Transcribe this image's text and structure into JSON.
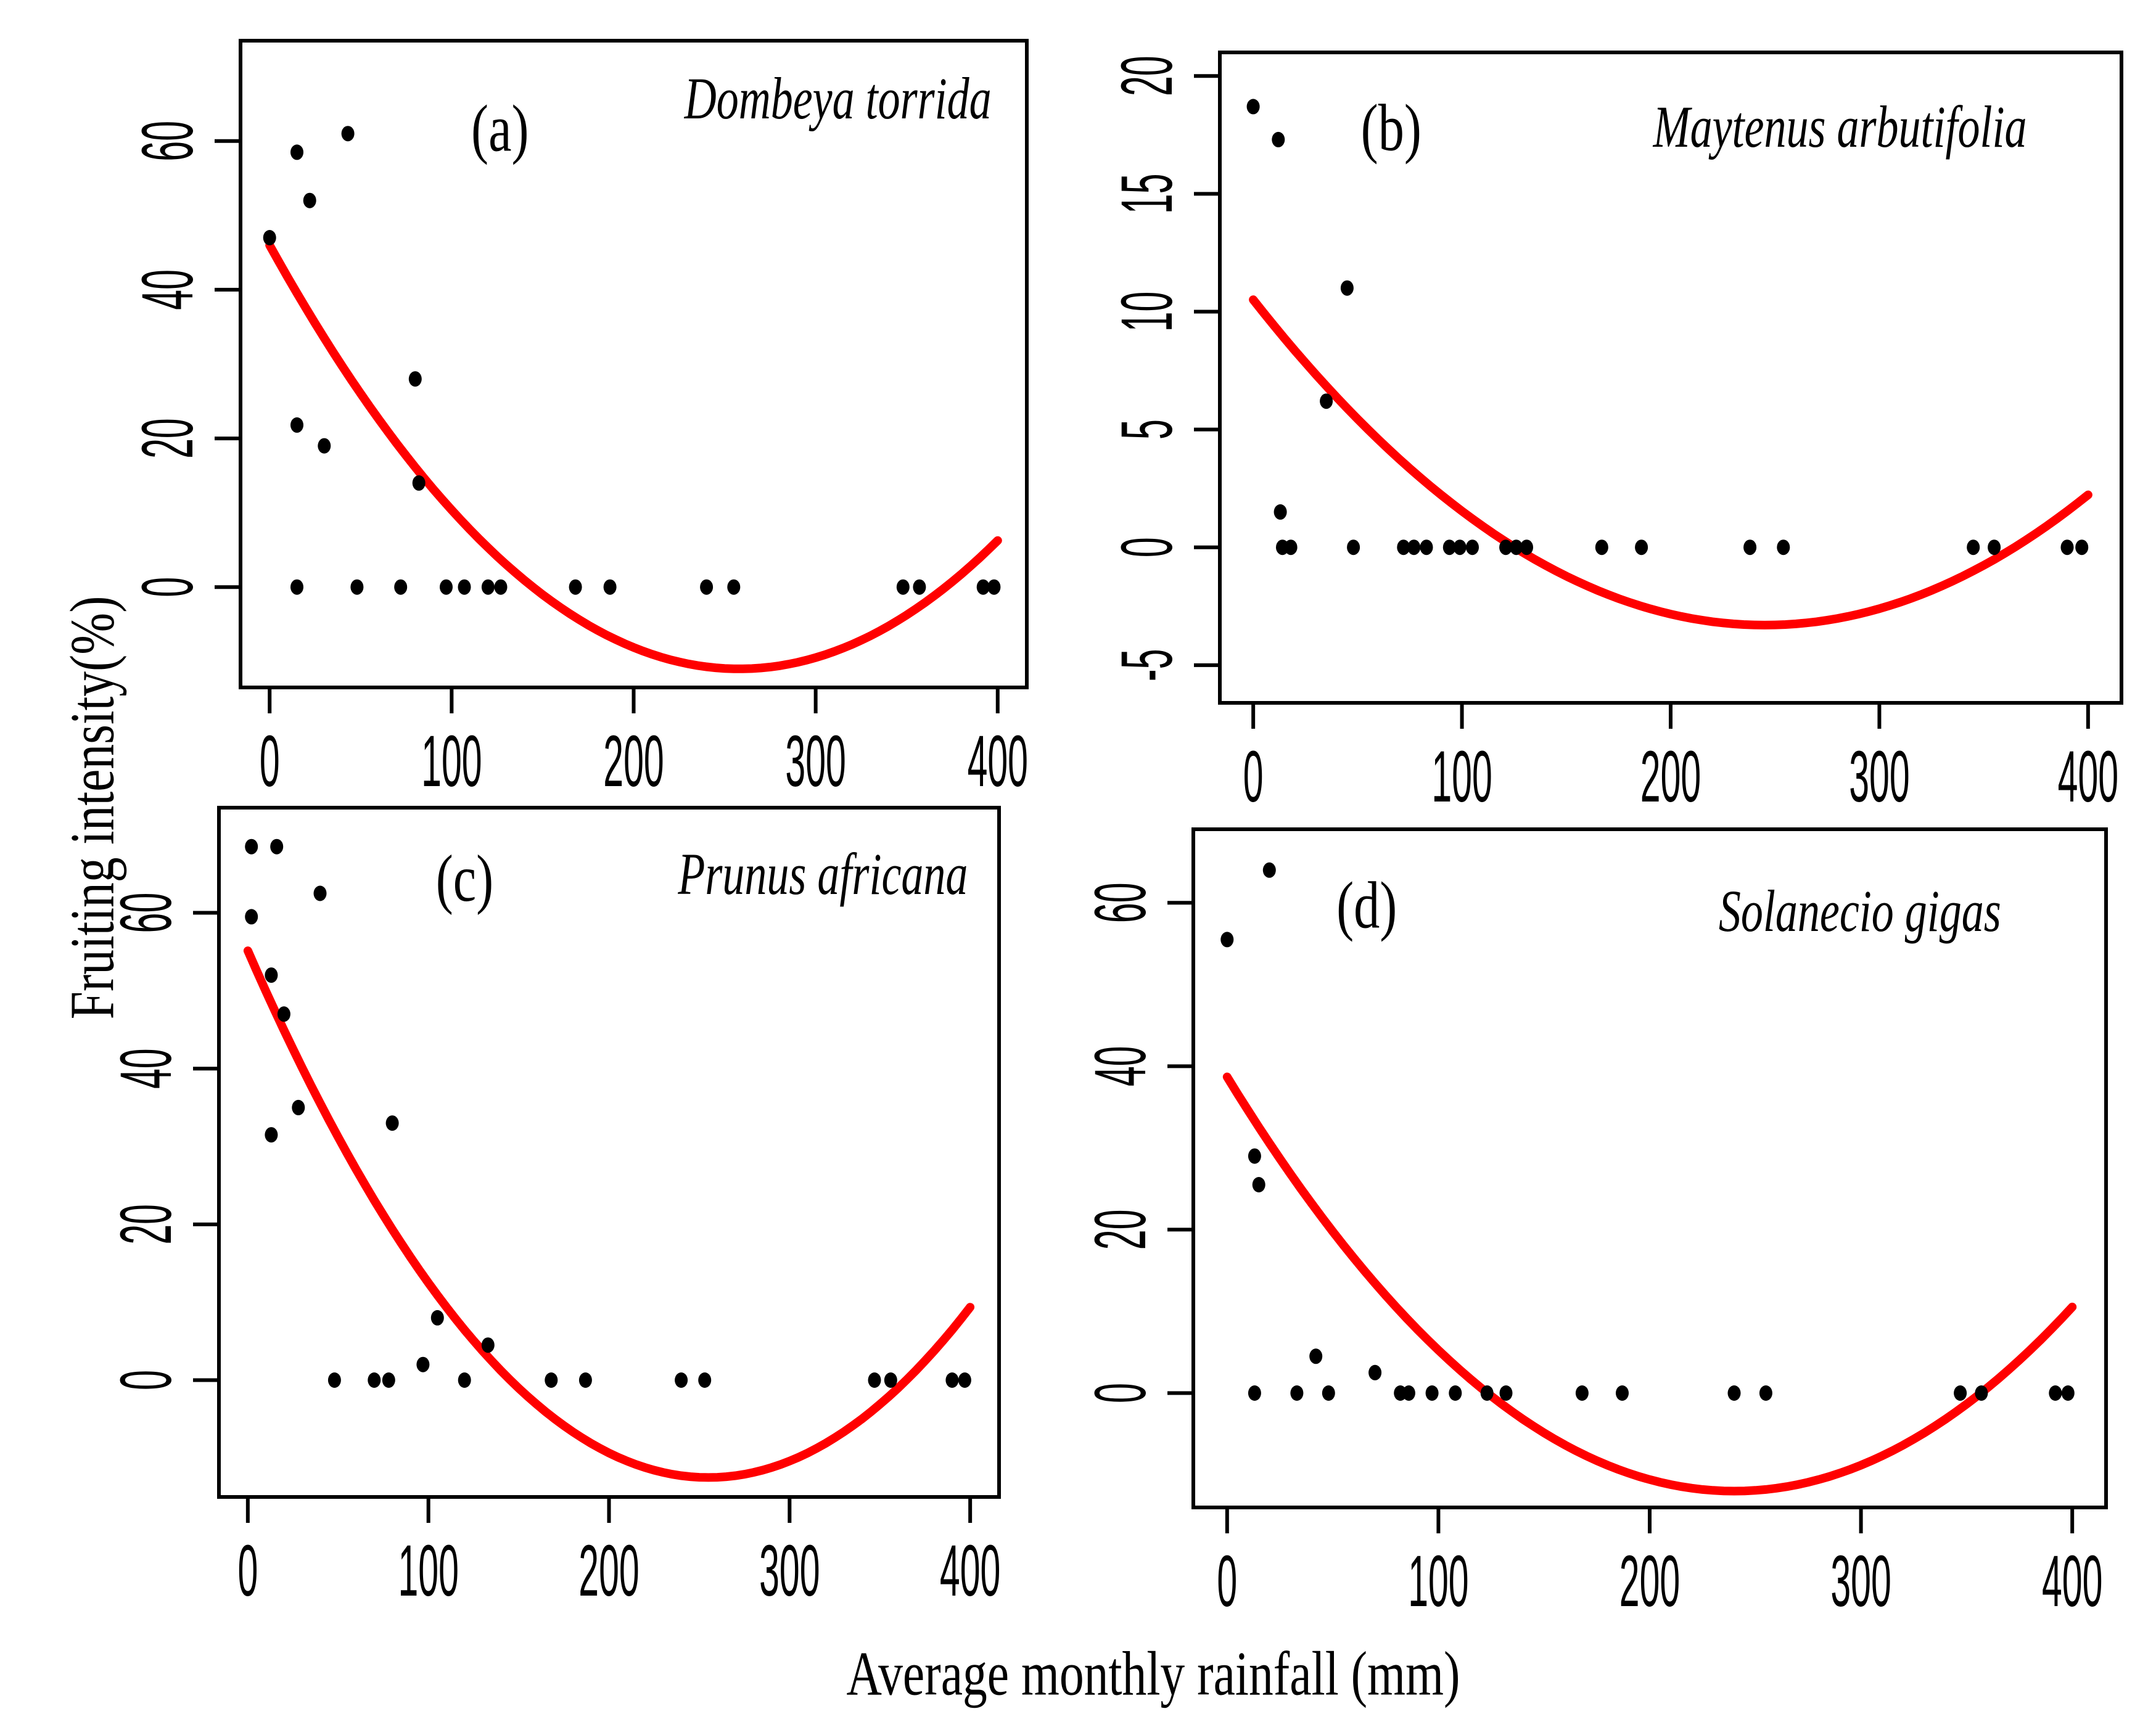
{
  "figure": {
    "y_axis_label": "Fruiting intensity(%)",
    "x_axis_label": "Average monthly rainfall (mm)",
    "background_color": "#ffffff",
    "curve_color": "#ff0000",
    "point_color": "#000000",
    "axis_color": "#000000"
  },
  "chart_data": [
    {
      "type": "scatter",
      "panel_id": "a",
      "panel_letter": "(a)",
      "title": "Dombeya torrida",
      "xlim": [
        -16,
        416
      ],
      "ylim": [
        -13.5,
        73.5
      ],
      "xticks": [
        0,
        100,
        200,
        300,
        400
      ],
      "yticks": [
        0,
        20,
        40,
        60
      ],
      "grid": false,
      "legend": null,
      "points": [
        [
          0,
          47
        ],
        [
          15,
          58.5
        ],
        [
          22,
          52
        ],
        [
          43,
          61
        ],
        [
          15,
          21.8
        ],
        [
          30,
          19
        ],
        [
          80,
          28
        ],
        [
          82,
          14
        ],
        [
          15,
          0
        ],
        [
          48,
          0
        ],
        [
          72,
          0
        ],
        [
          97,
          0
        ],
        [
          107,
          0
        ],
        [
          120,
          0
        ],
        [
          127,
          0
        ],
        [
          168,
          0
        ],
        [
          187,
          0
        ],
        [
          240,
          0
        ],
        [
          255,
          0
        ],
        [
          348,
          0
        ],
        [
          357,
          0
        ],
        [
          392,
          0
        ],
        [
          398,
          0
        ]
      ],
      "fit_curve": {
        "type": "quadratic",
        "a": 0.000856,
        "vertex_x": 258,
        "vertex_y": -11,
        "x_start": 0,
        "x_end": 400
      },
      "letter_pos": [
        0.33,
        0.17
      ],
      "title_pos": [
        0.955,
        0.12
      ]
    },
    {
      "type": "scatter",
      "panel_id": "b",
      "panel_letter": "(b)",
      "title": "Maytenus arbutifolia",
      "xlim": [
        -16,
        416
      ],
      "ylim": [
        -6.6,
        21
      ],
      "xticks": [
        0,
        100,
        200,
        300,
        400
      ],
      "yticks": [
        -5,
        0,
        5,
        10,
        15,
        20
      ],
      "grid": false,
      "legend": null,
      "points": [
        [
          0,
          18.7
        ],
        [
          12,
          17.3
        ],
        [
          45,
          11
        ],
        [
          35,
          6.2
        ],
        [
          13,
          1.5
        ],
        [
          14,
          0
        ],
        [
          18,
          0
        ],
        [
          48,
          0
        ],
        [
          72,
          0
        ],
        [
          77,
          0
        ],
        [
          83,
          0
        ],
        [
          94,
          0
        ],
        [
          99,
          0
        ],
        [
          105,
          0
        ],
        [
          121,
          0
        ],
        [
          126,
          0
        ],
        [
          131,
          0
        ],
        [
          167,
          0
        ],
        [
          186,
          0
        ],
        [
          238,
          0
        ],
        [
          254,
          0
        ],
        [
          345,
          0
        ],
        [
          355,
          0
        ],
        [
          390,
          0
        ],
        [
          397,
          0
        ]
      ],
      "fit_curve": {
        "type": "quadratic",
        "a": 0.00023,
        "vertex_x": 245,
        "vertex_y": -3.3,
        "x_start": 0,
        "x_end": 400
      },
      "letter_pos": [
        0.19,
        0.15
      ],
      "title_pos": [
        0.895,
        0.145
      ]
    },
    {
      "type": "scatter",
      "panel_id": "c",
      "panel_letter": "(c)",
      "title": "Prunus africana",
      "xlim": [
        -16,
        416
      ],
      "ylim": [
        -15,
        73.5
      ],
      "xticks": [
        0,
        100,
        200,
        300,
        400
      ],
      "yticks": [
        0,
        20,
        40,
        60
      ],
      "grid": false,
      "legend": null,
      "points": [
        [
          2,
          68.5
        ],
        [
          16,
          68.5
        ],
        [
          40,
          62.5
        ],
        [
          2,
          59.5
        ],
        [
          13,
          52
        ],
        [
          20,
          47
        ],
        [
          28,
          35
        ],
        [
          80,
          33
        ],
        [
          13,
          31.5
        ],
        [
          105,
          8
        ],
        [
          133,
          4.5
        ],
        [
          97,
          2
        ],
        [
          48,
          0
        ],
        [
          70,
          0
        ],
        [
          78,
          0
        ],
        [
          120,
          0
        ],
        [
          168,
          0
        ],
        [
          187,
          0
        ],
        [
          240,
          0
        ],
        [
          253,
          0
        ],
        [
          347,
          0
        ],
        [
          356,
          0
        ],
        [
          390,
          0
        ],
        [
          397,
          0
        ]
      ],
      "fit_curve": {
        "type": "quadratic",
        "a": 0.00104,
        "vertex_x": 255,
        "vertex_y": -12.5,
        "x_start": 0,
        "x_end": 400
      },
      "letter_pos": [
        0.315,
        0.135
      ],
      "title_pos": [
        0.96,
        0.125
      ]
    },
    {
      "type": "scatter",
      "panel_id": "d",
      "panel_letter": "(d)",
      "title": "Solanecio gigas",
      "xlim": [
        -16,
        416
      ],
      "ylim": [
        -14,
        69
      ],
      "xticks": [
        0,
        100,
        200,
        300,
        400
      ],
      "yticks": [
        0,
        20,
        40,
        60
      ],
      "grid": false,
      "legend": null,
      "points": [
        [
          20,
          64
        ],
        [
          0,
          55.5
        ],
        [
          13,
          29
        ],
        [
          15,
          25.5
        ],
        [
          42,
          4.5
        ],
        [
          70,
          2.5
        ],
        [
          13,
          0
        ],
        [
          33,
          0
        ],
        [
          48,
          0
        ],
        [
          82,
          0
        ],
        [
          86,
          0
        ],
        [
          97,
          0
        ],
        [
          108,
          0
        ],
        [
          123,
          0
        ],
        [
          132,
          0
        ],
        [
          168,
          0
        ],
        [
          187,
          0
        ],
        [
          240,
          0
        ],
        [
          255,
          0
        ],
        [
          347,
          0
        ],
        [
          357,
          0
        ],
        [
          392,
          0
        ],
        [
          398,
          0
        ]
      ],
      "fit_curve": {
        "type": "quadratic",
        "a": 0.00088,
        "vertex_x": 240,
        "vertex_y": -12,
        "x_start": 0,
        "x_end": 400
      },
      "letter_pos": [
        0.19,
        0.145
      ],
      "title_pos": [
        0.885,
        0.15
      ]
    }
  ]
}
